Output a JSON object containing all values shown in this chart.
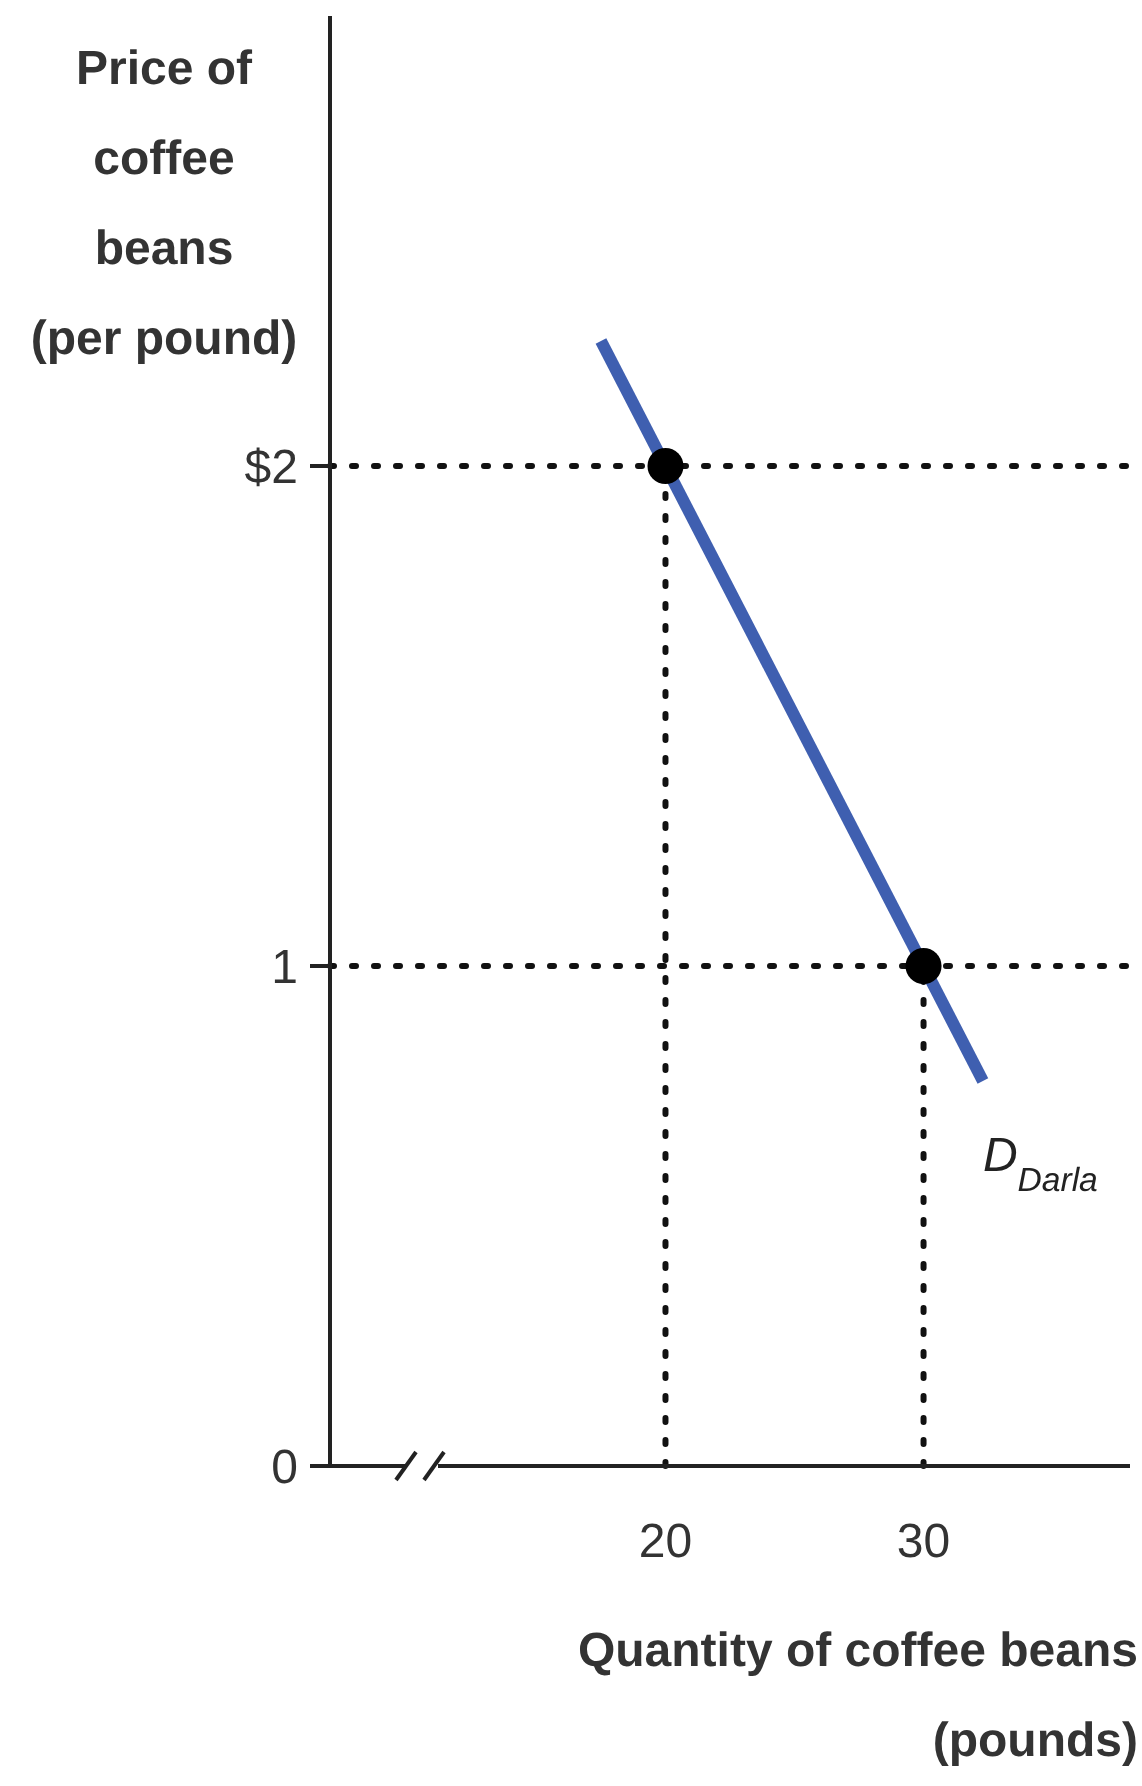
{
  "chart_data": {
    "type": "line",
    "ylabel": "Price of\ncoffee\nbeans\n(per pound)",
    "xlabel": "Quantity of coffee beans\n(pounds)",
    "xlim": [
      7,
      38
    ],
    "xticks": [
      20,
      30
    ],
    "ylim": [
      0,
      2.9
    ],
    "yticks": [
      {
        "value": 2,
        "label": "$2"
      },
      1,
      0
    ],
    "series": [
      {
        "name": "D$_{Darla}$",
        "color": "#3f5fb0",
        "x": [
          17.5,
          32.3
        ],
        "values": [
          2.25,
          0.77
        ]
      },
      {
        "type": "scatter",
        "color": "#000000",
        "x": [
          20,
          30
        ],
        "values": [
          2,
          1
        ],
        "marker": "circle"
      }
    ],
    "ref_lines": [
      {
        "axis": "y",
        "value": 2,
        "line_style": "dotted"
      },
      {
        "axis": "y",
        "value": 1,
        "line_style": "dotted"
      },
      {
        "axis": "x",
        "value": 20,
        "line_style": "dotted"
      },
      {
        "axis": "x",
        "value": 30,
        "line_style": "dotted"
      }
    ],
    "grid": false,
    "legend": false,
    "line_style": "solid"
  }
}
